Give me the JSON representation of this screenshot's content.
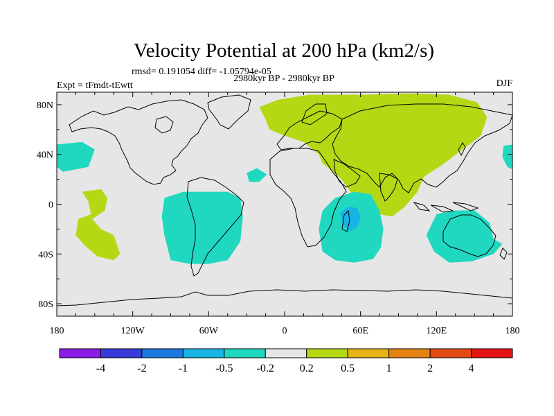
{
  "chart_data": {
    "type": "contour-map",
    "title": "Velocity Potential at 200 hPa (km2/s)",
    "stats_line": "rmsd= 0.191054 diff= -1.05794e-05",
    "left_label": "Expt = tFmdt-tEwtt",
    "center_label": "2980kyr BP - 2980kyr BP",
    "right_label": "DJF",
    "projection": "cylindrical equidistant",
    "lon_range": [
      -180,
      180
    ],
    "lat_range": [
      -90,
      90
    ],
    "x_ticks": [
      {
        "lon": -180,
        "label": "180"
      },
      {
        "lon": -120,
        "label": "120W"
      },
      {
        "lon": -60,
        "label": "60W"
      },
      {
        "lon": 0,
        "label": "0"
      },
      {
        "lon": 60,
        "label": "60E"
      },
      {
        "lon": 120,
        "label": "120E"
      },
      {
        "lon": 180,
        "label": "180"
      }
    ],
    "y_ticks": [
      {
        "lat": 80,
        "label": "80N"
      },
      {
        "lat": 40,
        "label": "40N"
      },
      {
        "lat": 0,
        "label": "0"
      },
      {
        "lat": -40,
        "label": "40S"
      },
      {
        "lat": -80,
        "label": "80S"
      }
    ],
    "colorbar": {
      "labels": [
        "-4",
        "-2",
        "-1",
        "-0.5",
        "-0.2",
        "0.2",
        "0.5",
        "1",
        "2",
        "4"
      ],
      "colors": [
        "#8a1ee6",
        "#3a3ad8",
        "#1a78e0",
        "#18b4e4",
        "#20d8c0",
        "#e6e6e6",
        "#b4d814",
        "#e4b414",
        "#e48214",
        "#e44a14",
        "#e41414"
      ]
    },
    "regions": [
      {
        "name": "siberia-asia-positive",
        "level": "0.2 to 0.5",
        "color": "#b4d814",
        "lonlat": [
          [
            -15,
            68
          ],
          [
            -20,
            78
          ],
          [
            -5,
            84
          ],
          [
            20,
            88
          ],
          [
            60,
            88
          ],
          [
            100,
            89
          ],
          [
            130,
            88
          ],
          [
            152,
            82
          ],
          [
            160,
            70
          ],
          [
            155,
            55
          ],
          [
            138,
            42
          ],
          [
            125,
            32
          ],
          [
            110,
            22
          ],
          [
            105,
            10
          ],
          [
            95,
            -2
          ],
          [
            85,
            -10
          ],
          [
            70,
            -7
          ],
          [
            60,
            0
          ],
          [
            52,
            10
          ],
          [
            45,
            20
          ],
          [
            36,
            28
          ],
          [
            30,
            33
          ],
          [
            27,
            40
          ],
          [
            15,
            50
          ],
          [
            0,
            55
          ],
          [
            -12,
            60
          ]
        ]
      },
      {
        "name": "n-pacific-positive",
        "level": "0.2 to 0.5",
        "color": "#b4d814",
        "lonlat": [
          [
            -160,
            10
          ],
          [
            -145,
            12
          ],
          [
            -140,
            5
          ],
          [
            -142,
            -5
          ],
          [
            -152,
            -12
          ],
          [
            -145,
            -20
          ],
          [
            -135,
            -25
          ],
          [
            -130,
            -40
          ],
          [
            -135,
            -45
          ],
          [
            -148,
            -42
          ],
          [
            -158,
            -33
          ],
          [
            -165,
            -25
          ],
          [
            -163,
            -12
          ],
          [
            -153,
            -8
          ],
          [
            -155,
            2
          ]
        ]
      },
      {
        "name": "s-america-negative",
        "level": "-0.5 to -0.2",
        "color": "#20d8c0",
        "lonlat": [
          [
            -95,
            5
          ],
          [
            -80,
            10
          ],
          [
            -60,
            10
          ],
          [
            -45,
            10
          ],
          [
            -35,
            5
          ],
          [
            -33,
            -10
          ],
          [
            -35,
            -30
          ],
          [
            -45,
            -45
          ],
          [
            -60,
            -48
          ],
          [
            -75,
            -48
          ],
          [
            -90,
            -45
          ],
          [
            -95,
            -25
          ],
          [
            -97,
            -10
          ]
        ]
      },
      {
        "name": "indian-ocean-negative",
        "level": "-0.5 to -0.2",
        "color": "#20d8c0",
        "lonlat": [
          [
            30,
            -5
          ],
          [
            40,
            5
          ],
          [
            55,
            10
          ],
          [
            68,
            8
          ],
          [
            75,
            -5
          ],
          [
            78,
            -20
          ],
          [
            76,
            -35
          ],
          [
            70,
            -44
          ],
          [
            55,
            -47
          ],
          [
            40,
            -45
          ],
          [
            30,
            -38
          ],
          [
            27,
            -20
          ]
        ]
      },
      {
        "name": "madagascar-core",
        "level": "-1 to -0.5",
        "color": "#18b4e4",
        "lonlat": [
          [
            44,
            -7
          ],
          [
            50,
            -2
          ],
          [
            57,
            -3
          ],
          [
            60,
            -10
          ],
          [
            58,
            -18
          ],
          [
            52,
            -22
          ],
          [
            46,
            -17
          ]
        ]
      },
      {
        "name": "australia-negative",
        "level": "-0.5 to -0.2",
        "color": "#20d8c0",
        "lonlat": [
          [
            120,
            -8
          ],
          [
            135,
            -5
          ],
          [
            150,
            -5
          ],
          [
            162,
            -15
          ],
          [
            165,
            -28
          ],
          [
            172,
            -32
          ],
          [
            165,
            -40
          ],
          [
            148,
            -46
          ],
          [
            130,
            -47
          ],
          [
            118,
            -38
          ],
          [
            112,
            -25
          ]
        ]
      },
      {
        "name": "atlantic-negative",
        "level": "-0.5 to -0.2",
        "color": "#20d8c0",
        "lonlat": [
          [
            -30,
            25
          ],
          [
            -22,
            29
          ],
          [
            -14,
            24
          ],
          [
            -20,
            18
          ],
          [
            -28,
            18
          ]
        ]
      },
      {
        "name": "nw-pacific-negative",
        "level": "-0.5 to -0.2",
        "color": "#20d8c0",
        "lonlat": [
          [
            -180,
            48
          ],
          [
            -160,
            50
          ],
          [
            -150,
            44
          ],
          [
            -155,
            30
          ],
          [
            -175,
            26
          ],
          [
            -180,
            30
          ]
        ]
      },
      {
        "name": "ne-pacific-negative",
        "level": "-0.5 to -0.2",
        "color": "#20d8c0",
        "lonlat": [
          [
            180,
            48
          ],
          [
            173,
            47
          ],
          [
            172,
            38
          ],
          [
            176,
            30
          ],
          [
            180,
            28
          ]
        ]
      }
    ]
  }
}
